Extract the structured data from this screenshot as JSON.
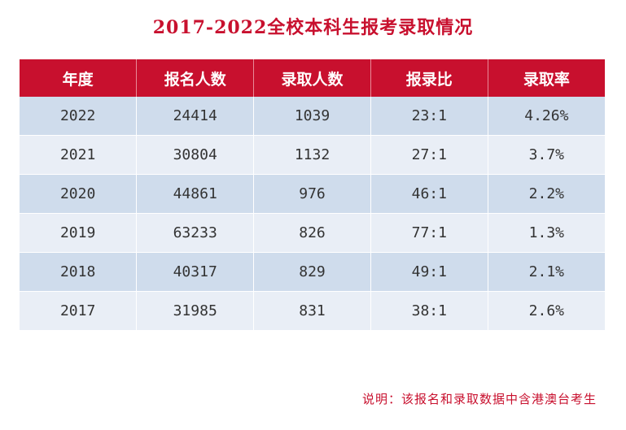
{
  "title": "2017-2022全校本科生报考录取情况",
  "table": {
    "headers": [
      "年度",
      "报名人数",
      "录取人数",
      "报录比",
      "录取率"
    ],
    "rows": [
      [
        "2022",
        "24414",
        "1039",
        "23:1",
        "4.26%"
      ],
      [
        "2021",
        "30804",
        "1132",
        "27:1",
        "3.7%"
      ],
      [
        "2020",
        "44861",
        "976",
        "46:1",
        "2.2%"
      ],
      [
        "2019",
        "63233",
        "826",
        "77:1",
        "1.3%"
      ],
      [
        "2018",
        "40317",
        "829",
        "49:1",
        "2.1%"
      ],
      [
        "2017",
        "31985",
        "831",
        "38:1",
        "2.6%"
      ]
    ]
  },
  "note": "说明：该报名和录取数据中含港澳台考生",
  "colors": {
    "accent": "#c8102e",
    "row_dark": "#cfdcec",
    "row_light": "#e9eef6"
  }
}
